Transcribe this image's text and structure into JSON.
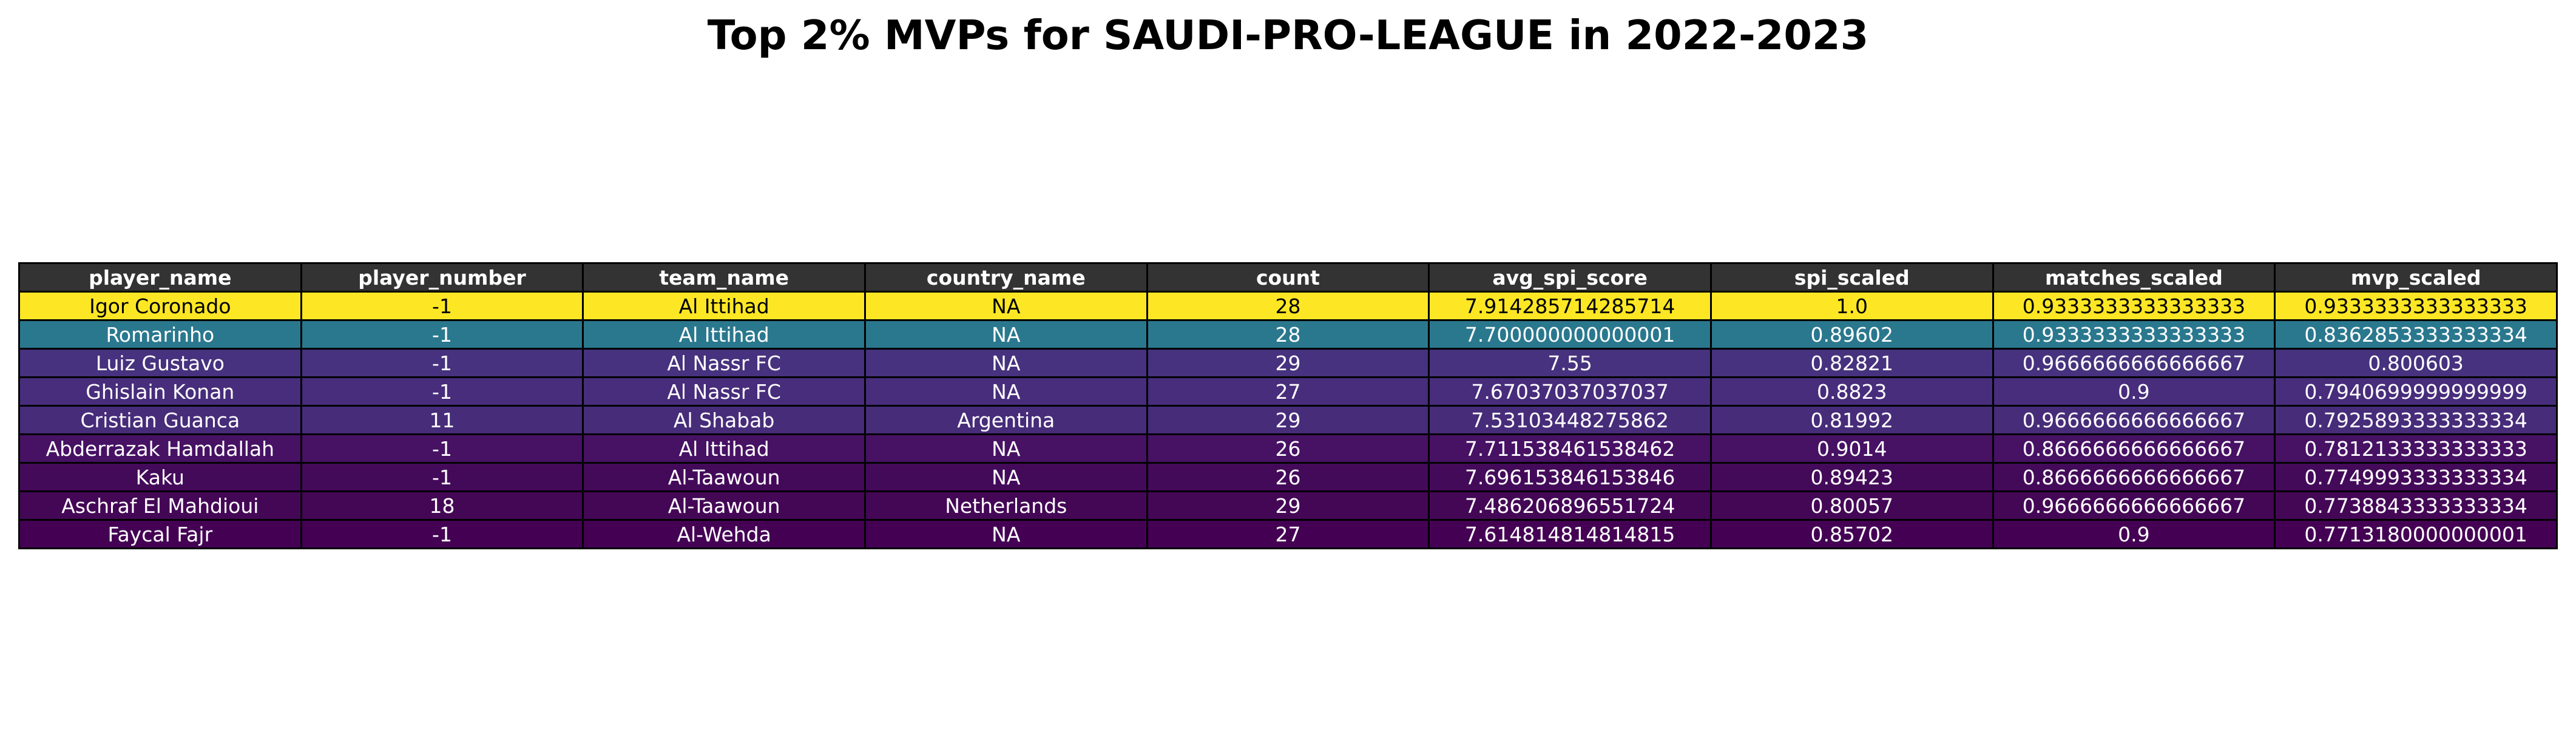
{
  "title": "Top 2% MVPs for SAUDI-PRO-LEAGUE in 2022-2023",
  "chart_data": {
    "type": "table",
    "title": "Top 2% MVPs for SAUDI-PRO-LEAGUE in 2022-2023",
    "columns": [
      "player_name",
      "player_number",
      "team_name",
      "country_name",
      "count",
      "avg_spi_score",
      "spi_scaled",
      "matches_scaled",
      "mvp_scaled"
    ],
    "header_color": "#333333",
    "rows": [
      {
        "cells": [
          "Igor Coronado",
          "-1",
          "Al Ittihad",
          "NA",
          "28",
          "7.914285714285714",
          "1.0",
          "0.9333333333333333",
          "0.9333333333333333"
        ],
        "color": "#fde725",
        "text_color": "#000000"
      },
      {
        "cells": [
          "Romarinho",
          "-1",
          "Al Ittihad",
          "NA",
          "28",
          "7.700000000000001",
          "0.89602",
          "0.9333333333333333",
          "0.8362853333333334"
        ],
        "color": "#2a788e",
        "text_color": "#ffffff"
      },
      {
        "cells": [
          "Luiz Gustavo",
          "-1",
          "Al Nassr FC",
          "NA",
          "29",
          "7.55",
          "0.82821",
          "0.9666666666666667",
          "0.800603"
        ],
        "color": "#46327e",
        "text_color": "#ffffff"
      },
      {
        "cells": [
          "Ghislain Konan",
          "-1",
          "Al Nassr FC",
          "NA",
          "27",
          "7.67037037037037",
          "0.8823",
          "0.9",
          "0.7940699999999999"
        ],
        "color": "#472d7b",
        "text_color": "#ffffff"
      },
      {
        "cells": [
          "Cristian Guanca",
          "11",
          "Al Shabab",
          "Argentina",
          "29",
          "7.53103448275862",
          "0.81992",
          "0.9666666666666667",
          "0.7925893333333334"
        ],
        "color": "#472c7a",
        "text_color": "#ffffff"
      },
      {
        "cells": [
          "Abderrazak Hamdallah",
          "-1",
          "Al Ittihad",
          "NA",
          "26",
          "7.711538461538462",
          "0.9014",
          "0.8666666666666667",
          "0.7812133333333333"
        ],
        "color": "#471164",
        "text_color": "#ffffff"
      },
      {
        "cells": [
          "Kaku",
          "-1",
          "Al-Taawoun",
          "NA",
          "26",
          "7.696153846153846",
          "0.89423",
          "0.8666666666666667",
          "0.7749993333333334"
        ],
        "color": "#440a5a",
        "text_color": "#ffffff"
      },
      {
        "cells": [
          "Aschraf El Mahdioui",
          "18",
          "Al-Taawoun",
          "Netherlands",
          "29",
          "7.486206896551724",
          "0.80057",
          "0.9666666666666667",
          "0.7738843333333334"
        ],
        "color": "#440756",
        "text_color": "#ffffff"
      },
      {
        "cells": [
          "Faycal Fajr",
          "-1",
          "Al-Wehda",
          "NA",
          "27",
          "7.614814814814815",
          "0.85702",
          "0.9",
          "0.7713180000000001"
        ],
        "color": "#440154",
        "text_color": "#ffffff"
      }
    ]
  }
}
